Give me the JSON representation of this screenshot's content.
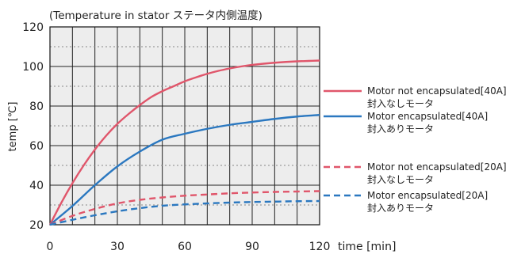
{
  "chart_data": {
    "type": "line",
    "title": "(Temperature in stator  ステータ内側温度)",
    "xlabel": "time [min]",
    "ylabel": "temp [℃]",
    "xlim": [
      0,
      120
    ],
    "ylim": [
      20,
      120
    ],
    "x_ticks": [
      0,
      30,
      60,
      90,
      120
    ],
    "y_ticks": [
      20,
      40,
      60,
      80,
      100,
      120
    ],
    "grid": true,
    "legend_position": "right",
    "series": [
      {
        "name": "Motor not encapsulated[40A]",
        "name_ja": "封入なしモータ",
        "color": "#e0566b",
        "dash": "solid",
        "x": [
          0,
          5,
          10,
          15,
          20,
          25,
          30,
          35,
          40,
          45,
          50,
          55,
          60,
          65,
          70,
          75,
          80,
          85,
          90,
          95,
          100,
          105,
          110,
          115,
          120
        ],
        "y": [
          20,
          31,
          41,
          50,
          58,
          65,
          71,
          76,
          80.5,
          84.5,
          87.5,
          90,
          92.5,
          94.5,
          96.3,
          97.8,
          99,
          100,
          100.8,
          101.4,
          101.9,
          102.3,
          102.6,
          102.8,
          103
        ]
      },
      {
        "name": "Motor encapsulated[40A]",
        "name_ja": "封入ありモータ",
        "color": "#2b78c0",
        "dash": "solid",
        "x": [
          0,
          10,
          20,
          30,
          40,
          50,
          60,
          70,
          80,
          90,
          100,
          110,
          120
        ],
        "y": [
          20,
          29.5,
          40,
          49.5,
          57,
          63,
          66,
          68.5,
          70.5,
          72,
          73.5,
          74.7,
          75.5
        ]
      },
      {
        "name": "Motor not encapsulated[20A]",
        "name_ja": "封入なしモータ",
        "color": "#e0566b",
        "dash": "dashed",
        "x": [
          0,
          10,
          20,
          30,
          40,
          50,
          60,
          70,
          80,
          90,
          100,
          110,
          120
        ],
        "y": [
          20,
          24.5,
          28,
          30.8,
          32.6,
          33.8,
          34.7,
          35.3,
          35.9,
          36.3,
          36.6,
          36.8,
          37
        ]
      },
      {
        "name": "Motor encapsulated[20A]",
        "name_ja": "封入ありモータ",
        "color": "#2b78c0",
        "dash": "dashed",
        "x": [
          0,
          10,
          20,
          30,
          40,
          50,
          60,
          70,
          80,
          90,
          100,
          110,
          120
        ],
        "y": [
          20,
          22.5,
          24.8,
          26.8,
          28.4,
          29.6,
          30.3,
          30.8,
          31.2,
          31.5,
          31.7,
          31.9,
          32
        ]
      }
    ]
  }
}
